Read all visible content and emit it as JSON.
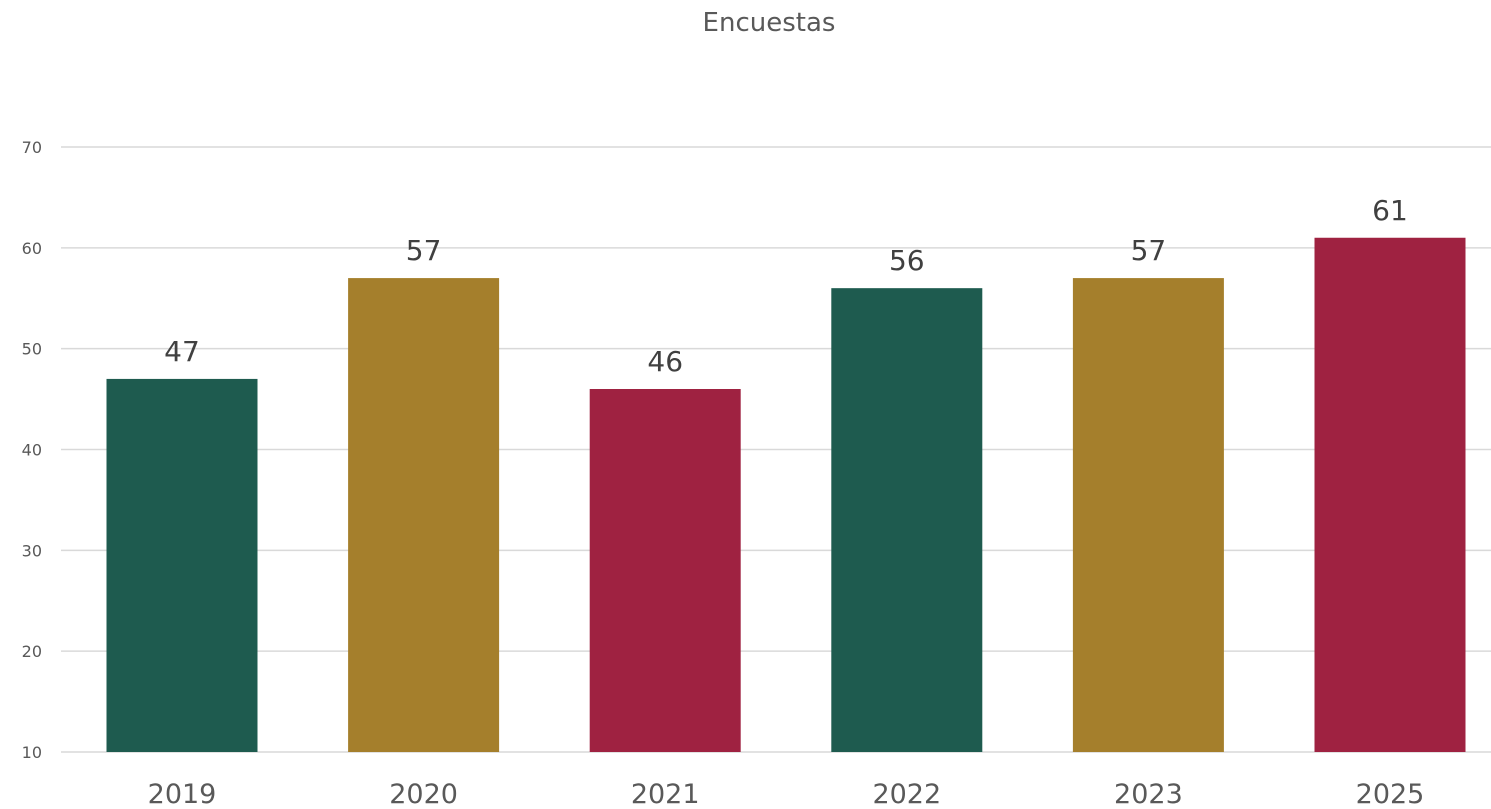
{
  "chart_data": {
    "type": "bar",
    "title": "Encuestas",
    "xlabel": "",
    "ylabel": "",
    "categories": [
      "2019",
      "2020",
      "2021",
      "2022",
      "2023",
      "2025"
    ],
    "values": [
      47,
      57,
      46,
      56,
      57,
      61
    ],
    "data_labels": [
      "47",
      "57",
      "46",
      "56",
      "57",
      "61"
    ],
    "ylim": [
      10,
      70
    ],
    "yticks": [
      10,
      20,
      30,
      40,
      50,
      60,
      70
    ],
    "grid": true,
    "legend": "none",
    "colors": [
      "#1e5b4f",
      "#a57f2c",
      "#9f2241",
      "#1e5b4f",
      "#a57f2c",
      "#9f2241"
    ]
  }
}
